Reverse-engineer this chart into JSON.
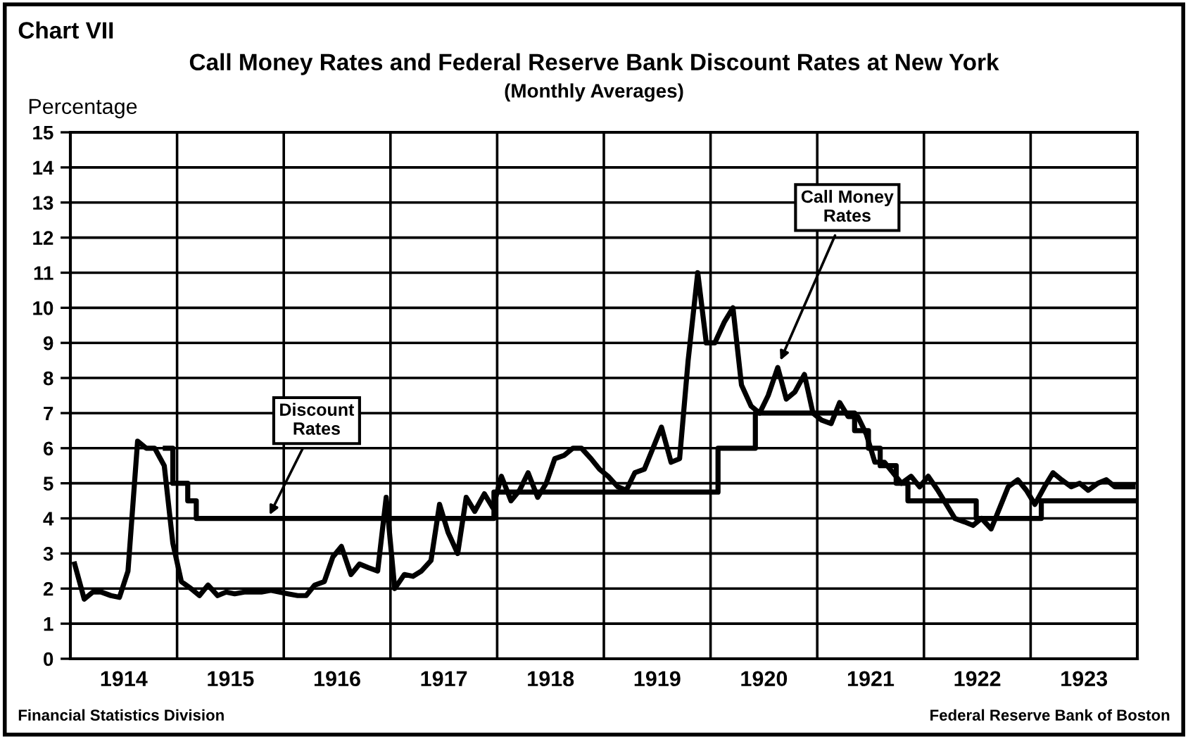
{
  "chart_data": {
    "type": "line",
    "title": "Call Money Rates and Federal Reserve Bank Discount Rates at New York",
    "subtitle": "(Monthly Averages)",
    "ylabel": "Percentage",
    "xlim": [
      1914,
      1924
    ],
    "xticks": [
      {
        "value": 1914,
        "label": null
      },
      {
        "value": 1914.5,
        "label": "1914"
      },
      {
        "value": 1915,
        "label": null
      },
      {
        "value": 1915.5,
        "label": "1915"
      },
      {
        "value": 1916,
        "label": null
      },
      {
        "value": 1916.5,
        "label": "1916"
      },
      {
        "value": 1917,
        "label": null
      },
      {
        "value": 1917.5,
        "label": "1917"
      },
      {
        "value": 1918,
        "label": null
      },
      {
        "value": 1918.5,
        "label": "1918"
      },
      {
        "value": 1919,
        "label": null
      },
      {
        "value": 1919.5,
        "label": "1919"
      },
      {
        "value": 1920,
        "label": null
      },
      {
        "value": 1920.5,
        "label": "1920"
      },
      {
        "value": 1921,
        "label": null
      },
      {
        "value": 1921.5,
        "label": "1921"
      },
      {
        "value": 1922,
        "label": null
      },
      {
        "value": 1922.5,
        "label": "1922"
      },
      {
        "value": 1923,
        "label": null
      },
      {
        "value": 1923.5,
        "label": "1923"
      },
      {
        "value": 1924,
        "label": null
      }
    ],
    "ylim": [
      0,
      15
    ],
    "yticks": [
      0,
      1,
      2,
      3,
      4,
      5,
      6,
      7,
      8,
      9,
      10,
      11,
      12,
      13,
      14,
      15
    ],
    "grid": true,
    "legend": false,
    "series": [
      {
        "color": "#000000",
        "x": [
          1914.04,
          1914.13,
          1914.21,
          1914.29,
          1914.38,
          1914.46,
          1914.54,
          1914.63,
          1914.71,
          1914.79,
          1914.88,
          1914.96,
          1915.04,
          1915.13,
          1915.21,
          1915.29,
          1915.38,
          1915.46,
          1915.54,
          1915.63,
          1915.71,
          1915.79,
          1915.88,
          1915.96,
          1916.04,
          1916.13,
          1916.21,
          1916.29,
          1916.38,
          1916.46,
          1916.54,
          1916.63,
          1916.71,
          1916.79,
          1916.88,
          1916.96,
          1917.04,
          1917.13,
          1917.21,
          1917.29,
          1917.38,
          1917.46,
          1917.54,
          1917.63,
          1917.71,
          1917.79,
          1917.88,
          1917.96,
          1918.04,
          1918.13,
          1918.21,
          1918.29,
          1918.38,
          1918.46,
          1918.54,
          1918.63,
          1918.71,
          1918.79,
          1918.88,
          1918.96,
          1919.04,
          1919.13,
          1919.21,
          1919.29,
          1919.38,
          1919.46,
          1919.54,
          1919.63,
          1919.71,
          1919.79,
          1919.88,
          1919.96,
          1920.04,
          1920.13,
          1920.21,
          1920.29,
          1920.38,
          1920.46,
          1920.54,
          1920.63,
          1920.71,
          1920.79,
          1920.88,
          1920.96,
          1921.04,
          1921.13,
          1921.21,
          1921.29,
          1921.38,
          1921.46,
          1921.54,
          1921.63,
          1921.71,
          1921.79,
          1921.88,
          1921.96,
          1922.04,
          1922.13,
          1922.21,
          1922.29,
          1922.38,
          1922.46,
          1922.54,
          1922.63,
          1922.71,
          1922.79,
          1922.88,
          1922.96,
          1923.04,
          1923.13,
          1923.21,
          1923.29,
          1923.38,
          1923.46,
          1923.54,
          1923.63,
          1923.71,
          1923.79,
          1923.88,
          1923.96
        ],
        "values": [
          2.7,
          1.7,
          1.9,
          1.9,
          1.8,
          1.75,
          2.5,
          6.2,
          6.0,
          6.0,
          5.5,
          3.3,
          2.2,
          2.0,
          1.8,
          2.1,
          1.8,
          1.9,
          1.85,
          1.9,
          1.9,
          1.9,
          1.95,
          1.9,
          1.85,
          1.8,
          1.8,
          2.1,
          2.2,
          2.9,
          3.2,
          2.4,
          2.7,
          2.6,
          2.5,
          4.6,
          2.0,
          2.4,
          2.35,
          2.5,
          2.8,
          4.4,
          3.6,
          3.0,
          4.6,
          4.2,
          4.7,
          4.3,
          5.2,
          4.5,
          4.8,
          5.3,
          4.6,
          5.0,
          5.7,
          5.8,
          6.0,
          6.0,
          5.7,
          5.4,
          5.2,
          4.9,
          4.8,
          5.3,
          5.4,
          6.0,
          6.6,
          5.6,
          5.7,
          8.5,
          11.0,
          9.0,
          9.0,
          9.6,
          10.0,
          7.8,
          7.2,
          7.0,
          7.5,
          8.3,
          7.4,
          7.6,
          8.1,
          7.0,
          6.8,
          6.7,
          7.3,
          6.9,
          6.9,
          6.4,
          5.6,
          5.6,
          5.3,
          5.0,
          5.2,
          4.9,
          5.2,
          4.8,
          4.4,
          4.0,
          3.9,
          3.8,
          4.0,
          3.7,
          4.3,
          4.9,
          5.1,
          4.8,
          4.4,
          4.9,
          5.3,
          5.1,
          4.9,
          5.0,
          4.8,
          5.0,
          5.1,
          4.9,
          4.9,
          4.9
        ]
      },
      {
        "type": "step",
        "color": "#000000",
        "x": [
          1914.89,
          1914.96,
          1915.1,
          1915.18,
          1917.97,
          1920.07,
          1920.42,
          1921.35,
          1921.48,
          1921.59,
          1921.74,
          1921.85,
          1922.49,
          1923.1,
          1924
        ],
        "values": [
          6,
          5,
          4.5,
          4,
          4.75,
          6,
          7,
          6.5,
          6,
          5.5,
          5,
          4.5,
          4,
          4.5,
          4.5
        ]
      }
    ],
    "annotations": [
      "Chart VII",
      {
        "text": "Discount Rates",
        "x": 1915.85,
        "y": 4.0
      },
      {
        "text": "Call Money Rates",
        "x": 1920.64,
        "y": 8.4
      },
      "Financial Statistics Division",
      "Federal Reserve Bank of Boston"
    ]
  }
}
